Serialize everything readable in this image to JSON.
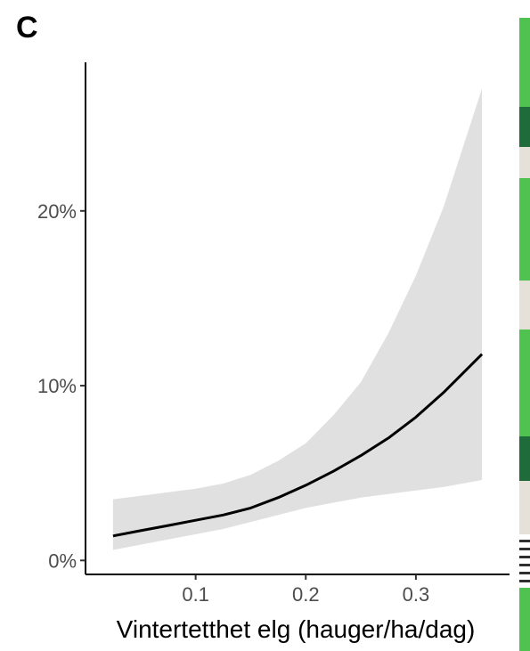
{
  "panel_label": "C",
  "chart_data": {
    "type": "line",
    "title": "",
    "xlabel": "Vintertetthet elg (hauger/ha/dag)",
    "ylabel": "",
    "xlim": [
      0.0,
      0.385
    ],
    "ylim": [
      -0.008,
      0.285
    ],
    "x_ticks": [
      {
        "value": 0.1,
        "label": "0.1"
      },
      {
        "value": 0.2,
        "label": "0.2"
      },
      {
        "value": 0.3,
        "label": "0.3"
      }
    ],
    "y_ticks": [
      {
        "value": 0.0,
        "label": "0%"
      },
      {
        "value": 0.1,
        "label": "10%"
      },
      {
        "value": 0.2,
        "label": "20%"
      }
    ],
    "grid": false,
    "series": [
      {
        "x": [
          0.025,
          0.05,
          0.075,
          0.1,
          0.125,
          0.15,
          0.175,
          0.2,
          0.225,
          0.25,
          0.275,
          0.3,
          0.325,
          0.36
        ],
        "y": [
          0.014,
          0.017,
          0.02,
          0.023,
          0.026,
          0.03,
          0.036,
          0.043,
          0.051,
          0.06,
          0.07,
          0.082,
          0.096,
          0.118
        ],
        "lower": [
          0.006,
          0.009,
          0.012,
          0.015,
          0.018,
          0.022,
          0.026,
          0.03,
          0.033,
          0.036,
          0.038,
          0.04,
          0.042,
          0.046
        ],
        "upper": [
          0.035,
          0.037,
          0.039,
          0.041,
          0.044,
          0.049,
          0.057,
          0.067,
          0.083,
          0.102,
          0.13,
          0.163,
          0.202,
          0.27
        ],
        "color": "#000000",
        "band_color": "#e0e0e0"
      }
    ]
  },
  "side_strip_colors": [
    "#4fc24f",
    "#1f6b3a",
    "#ffffff",
    "#e6e1d8",
    "#2f2f2f"
  ]
}
